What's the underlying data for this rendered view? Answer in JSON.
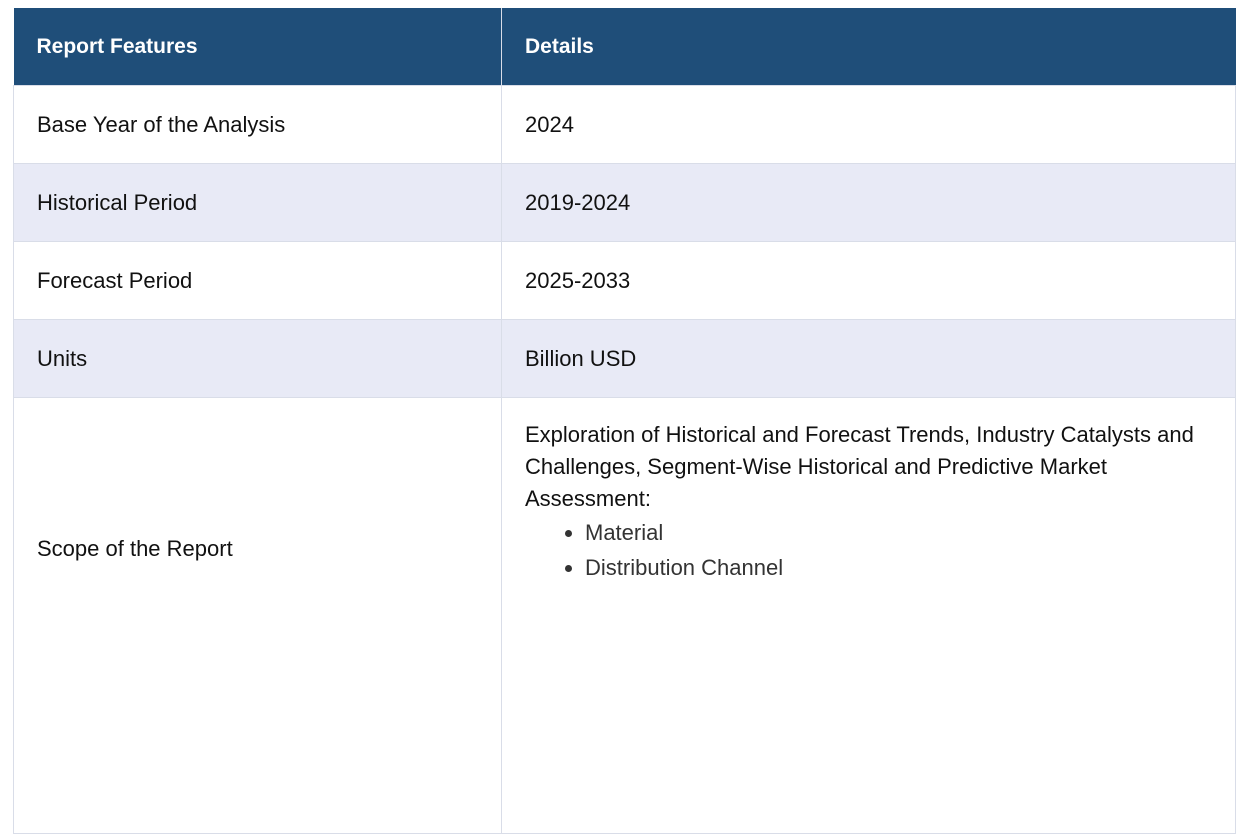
{
  "table": {
    "headers": [
      "Report Features",
      "Details"
    ],
    "rows": [
      {
        "feature": "Base Year of the Analysis",
        "detail": "2024"
      },
      {
        "feature": "Historical Period",
        "detail": "2019-2024"
      },
      {
        "feature": "Forecast Period",
        "detail": "2025-2033"
      },
      {
        "feature": "Units",
        "detail": "Billion USD"
      }
    ],
    "scope": {
      "feature": "Scope of the Report",
      "intro": "Exploration of Historical and Forecast Trends, Industry Catalysts and Challenges, Segment-Wise Historical and Predictive Market Assessment:",
      "items": [
        "Material",
        "Distribution Channel"
      ]
    }
  }
}
